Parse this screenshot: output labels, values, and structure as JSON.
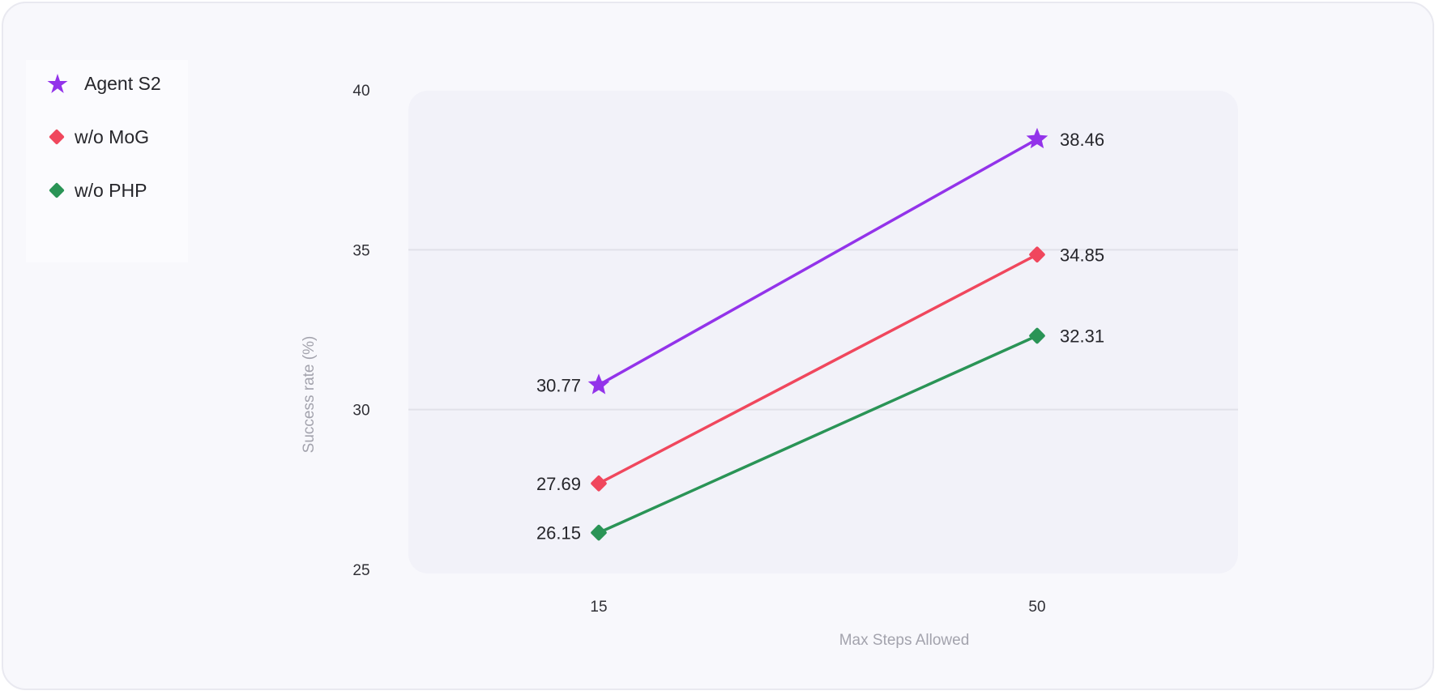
{
  "chart_data": {
    "type": "line",
    "title": "",
    "xlabel": "Max Steps Allowed",
    "ylabel": "Success rate (%)",
    "categories": [
      "15",
      "50"
    ],
    "ylim": [
      25,
      40
    ],
    "yticks": [
      "25",
      "30",
      "35",
      "40"
    ],
    "grid": true,
    "legend_position": "top-left",
    "series": [
      {
        "name": "Agent S2",
        "values": [
          30.77,
          38.46
        ],
        "labels": [
          "30.77",
          "38.46"
        ],
        "color": "#9333ea",
        "marker": "star-icon"
      },
      {
        "name": "w/o MoG",
        "values": [
          27.69,
          34.85
        ],
        "labels": [
          "27.69",
          "34.85"
        ],
        "color": "#f0475d",
        "marker": "diamond-icon"
      },
      {
        "name": "w/o PHP",
        "values": [
          26.15,
          32.31
        ],
        "labels": [
          "26.15",
          "32.31"
        ],
        "color": "#2a9456",
        "marker": "diamond-icon"
      }
    ]
  }
}
